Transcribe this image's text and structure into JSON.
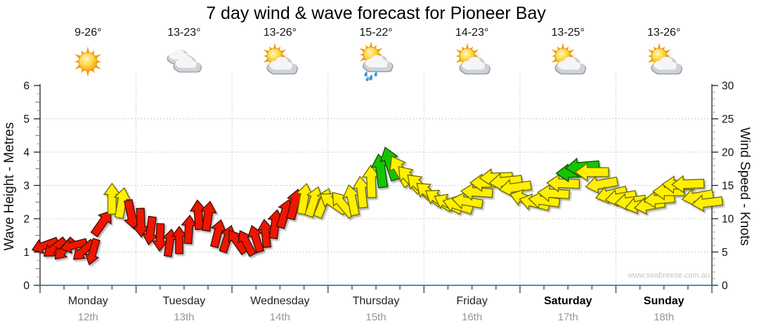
{
  "title": "7 day wind & wave forecast for Pioneer Bay",
  "watermark": "www.seabreeze.com.au",
  "days": [
    {
      "name": "Monday",
      "date": "12th",
      "temp": "9-26°",
      "icon": "sun",
      "bold": false
    },
    {
      "name": "Tuesday",
      "date": "13th",
      "temp": "13-23°",
      "icon": "clouds",
      "bold": false
    },
    {
      "name": "Wednesday",
      "date": "14th",
      "temp": "13-26°",
      "icon": "sun-cloud",
      "bold": false
    },
    {
      "name": "Thursday",
      "date": "15th",
      "temp": "15-22°",
      "icon": "sun-cloud-rain",
      "bold": false
    },
    {
      "name": "Friday",
      "date": "16th",
      "temp": "14-23°",
      "icon": "sun-cloud",
      "bold": false
    },
    {
      "name": "Saturday",
      "date": "17th",
      "temp": "13-25°",
      "icon": "sun-cloud",
      "bold": true
    },
    {
      "name": "Sunday",
      "date": "18th",
      "temp": "13-26°",
      "icon": "sun-cloud",
      "bold": true
    }
  ],
  "axes": {
    "left_label": "Wave Height - Metres",
    "right_label": "Wind Speed - Knots",
    "left_ticks": [
      0,
      1,
      2,
      3,
      4,
      5,
      6
    ],
    "right_ticks": [
      0,
      5,
      10,
      15,
      20,
      25,
      30
    ]
  },
  "colors": {
    "arrow_red": "#ee1500",
    "arrow_yellow": "#ffef00",
    "arrow_green": "#17c400",
    "axis_bottom": "#2e6189",
    "axis_side": "#222222",
    "grid": "#bcbcbc",
    "date_text": "#979797",
    "watermark": "#c3c3c3"
  },
  "chart_data": {
    "type": "scatter",
    "title": "7 day wind & wave forecast for Pioneer Bay",
    "categories": [
      "Monday 12th",
      "Tuesday 13th",
      "Wednesday 14th",
      "Thursday 15th",
      "Friday 16th",
      "Saturday 17th",
      "Sunday 18th"
    ],
    "y_left": {
      "label": "Wave Height - Metres",
      "range": [
        0,
        6
      ],
      "gridlines": [
        1,
        2,
        3,
        4,
        5
      ]
    },
    "y_right": {
      "label": "Wind Speed - Knots",
      "range": [
        0,
        30
      ],
      "ticks": [
        0,
        5,
        10,
        15,
        20,
        25,
        30
      ]
    },
    "x": {
      "unit": "days",
      "range": [
        0,
        7
      ],
      "grid_at_day_boundaries": true
    },
    "point_format": [
      "time_days",
      "wind_speed_knots",
      "direction_deg_cw_from_up",
      "color(r|y|g)"
    ],
    "points": [
      [
        0.05,
        6.0,
        250,
        "r"
      ],
      [
        0.15,
        5.6,
        232,
        "r"
      ],
      [
        0.25,
        5.4,
        222,
        "r"
      ],
      [
        0.35,
        6.0,
        256,
        "r"
      ],
      [
        0.45,
        5.2,
        228,
        "r"
      ],
      [
        0.55,
        5.0,
        196,
        "r"
      ],
      [
        0.65,
        9.4,
        35,
        "r"
      ],
      [
        0.75,
        13.0,
        0,
        "y"
      ],
      [
        0.85,
        12.4,
        10,
        "y"
      ],
      [
        0.95,
        10.6,
        168,
        "r"
      ],
      [
        1.05,
        9.4,
        178,
        "r"
      ],
      [
        1.15,
        8.2,
        188,
        "r"
      ],
      [
        1.25,
        7.2,
        182,
        "r"
      ],
      [
        1.35,
        6.4,
        8,
        "r"
      ],
      [
        1.45,
        6.8,
        0,
        "r"
      ],
      [
        1.55,
        8.4,
        4,
        "r"
      ],
      [
        1.65,
        10.6,
        -4,
        "r"
      ],
      [
        1.75,
        10.4,
        8,
        "r"
      ],
      [
        1.85,
        7.8,
        14,
        "r"
      ],
      [
        1.95,
        7.0,
        18,
        "r"
      ],
      [
        2.05,
        6.6,
        -35,
        "r"
      ],
      [
        2.15,
        6.4,
        -28,
        "r"
      ],
      [
        2.25,
        7.0,
        -18,
        "r"
      ],
      [
        2.35,
        7.8,
        -6,
        "r"
      ],
      [
        2.45,
        9.2,
        8,
        "r"
      ],
      [
        2.55,
        10.8,
        18,
        "r"
      ],
      [
        2.65,
        12.2,
        14,
        "r"
      ],
      [
        2.75,
        13.0,
        10,
        "y"
      ],
      [
        2.85,
        12.6,
        18,
        "y"
      ],
      [
        2.95,
        12.4,
        22,
        "y"
      ],
      [
        3.05,
        12.4,
        -55,
        "y"
      ],
      [
        3.15,
        12.2,
        -40,
        "y"
      ],
      [
        3.25,
        12.8,
        -12,
        "y"
      ],
      [
        3.35,
        14.0,
        -6,
        "y"
      ],
      [
        3.45,
        15.6,
        -2,
        "y"
      ],
      [
        3.55,
        17.2,
        -8,
        "g"
      ],
      [
        3.65,
        18.3,
        -18,
        "g"
      ],
      [
        3.75,
        17.2,
        -30,
        "y"
      ],
      [
        3.85,
        16.0,
        -42,
        "y"
      ],
      [
        3.95,
        14.9,
        -46,
        "y"
      ],
      [
        4.05,
        13.8,
        -50,
        "y"
      ],
      [
        4.15,
        12.9,
        -56,
        "y"
      ],
      [
        4.25,
        12.3,
        -62,
        "y"
      ],
      [
        4.35,
        12.0,
        -72,
        "y"
      ],
      [
        4.45,
        12.6,
        -80,
        "y"
      ],
      [
        4.55,
        14.0,
        -86,
        "y"
      ],
      [
        4.65,
        15.4,
        -90,
        "y"
      ],
      [
        4.75,
        16.2,
        -92,
        "y"
      ],
      [
        4.85,
        15.6,
        -96,
        "y"
      ],
      [
        4.95,
        14.7,
        -98,
        "y"
      ],
      [
        5.05,
        13.0,
        -72,
        "y"
      ],
      [
        5.15,
        12.4,
        -76,
        "y"
      ],
      [
        5.25,
        12.7,
        -82,
        "y"
      ],
      [
        5.35,
        13.8,
        -86,
        "y"
      ],
      [
        5.45,
        15.3,
        -88,
        "y"
      ],
      [
        5.55,
        16.9,
        -92,
        "g"
      ],
      [
        5.65,
        17.8,
        -95,
        "g"
      ],
      [
        5.75,
        17.0,
        -90,
        "y"
      ],
      [
        5.85,
        15.2,
        -100,
        "y"
      ],
      [
        5.95,
        13.7,
        -104,
        "y"
      ],
      [
        6.05,
        13.2,
        -100,
        "y"
      ],
      [
        6.15,
        12.6,
        -98,
        "y"
      ],
      [
        6.25,
        12.1,
        -104,
        "y"
      ],
      [
        6.35,
        12.0,
        -100,
        "y"
      ],
      [
        6.45,
        12.9,
        -95,
        "y"
      ],
      [
        6.55,
        14.1,
        -90,
        "y"
      ],
      [
        6.65,
        15.1,
        -88,
        "y"
      ],
      [
        6.75,
        15.2,
        -92,
        "y"
      ],
      [
        6.85,
        13.3,
        -100,
        "y"
      ],
      [
        6.95,
        12.4,
        -97,
        "y"
      ]
    ]
  }
}
